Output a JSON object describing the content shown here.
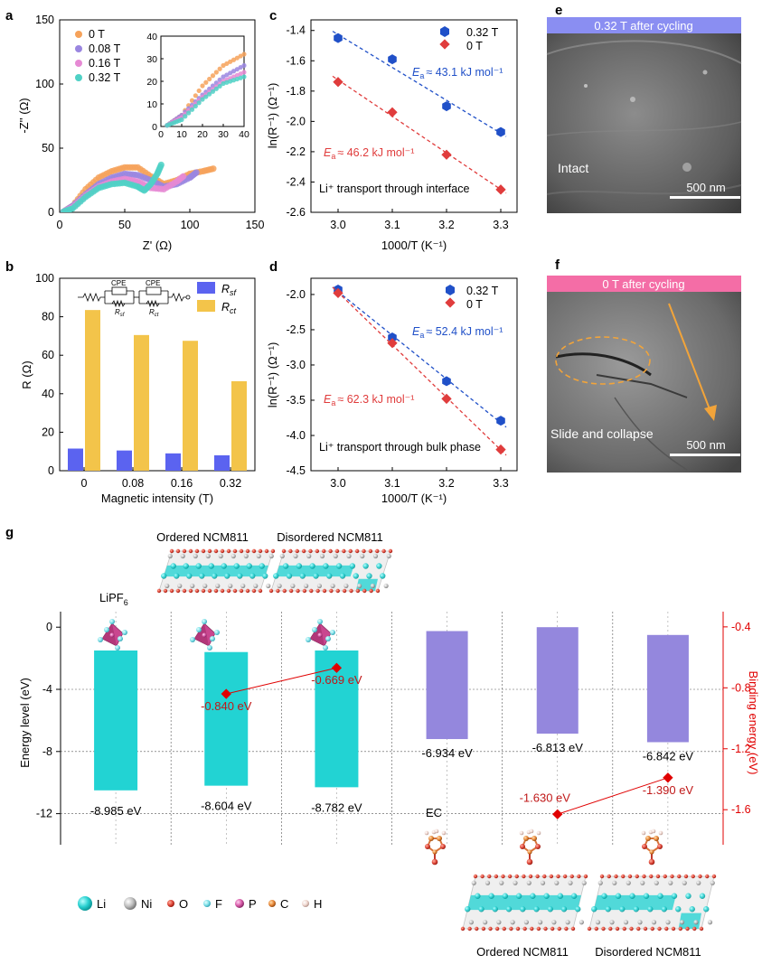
{
  "figure": {
    "panels": {
      "a": "a",
      "b": "b",
      "c": "c",
      "d": "d",
      "e": "e",
      "f": "f",
      "g": "g"
    }
  },
  "colors": {
    "t0": "#f6a25a",
    "t008": "#9a86e0",
    "t016": "#e68ad4",
    "t032": "#4fd1c5",
    "blue": "#2050c8",
    "red": "#e03c3c",
    "bar_rsf": "#5b63f0",
    "bar_rct": "#f3c44a",
    "cyan_bar": "#22d3d3",
    "purple_bar": "#9487dd",
    "binding": "#e00000",
    "sem_e_header": "#8a8ef2",
    "sem_f_header": "#f46da6",
    "arrow": "#f2a43a"
  },
  "panel_a": {
    "xlabel": "Z' (Ω)",
    "ylabel": "-Z'' (Ω)",
    "x_ticks": [
      "0",
      "50",
      "100",
      "150"
    ],
    "y_ticks": [
      "0",
      "50",
      "100",
      "150"
    ],
    "inset_x_ticks": [
      "0",
      "10",
      "20",
      "30",
      "40"
    ],
    "inset_y_ticks": [
      "0",
      "10",
      "20",
      "30",
      "40"
    ],
    "legend": [
      "0 T",
      "0.08 T",
      "0.16 T",
      "0.32 T"
    ]
  },
  "panel_b": {
    "xlabel": "Magnetic intensity (T)",
    "ylabel": "R (Ω)",
    "y_ticks": [
      "0",
      "20",
      "40",
      "60",
      "80",
      "100"
    ],
    "legend": {
      "rsf_main": "R",
      "rsf_sub": "sf",
      "rct_main": "R",
      "rct_sub": "ct"
    },
    "circuit": {
      "cpe1": "CPE",
      "cpe2": "CPE",
      "r1_main": "R",
      "r1_sub": "sf",
      "r2_main": "R",
      "r2_sub": "ct"
    }
  },
  "panel_c": {
    "xlabel": "1000/T (K⁻¹)",
    "ylabel": "ln(R⁻¹) (Ω⁻¹)",
    "x_ticks": [
      "3.0",
      "3.1",
      "3.2",
      "3.3"
    ],
    "y_ticks": [
      "-1.4",
      "-1.6",
      "-1.8",
      "-2.0",
      "-2.2",
      "-2.4",
      "-2.6"
    ],
    "legend": [
      "0.32 T",
      "0 T"
    ],
    "ea_blue": "≈ 43.1 kJ mol⁻¹",
    "ea_red": "≈ 46.2 kJ mol⁻¹",
    "note": "Li⁺ transport through interface"
  },
  "panel_d": {
    "xlabel": "1000/T (K⁻¹)",
    "ylabel": "ln(R⁻¹) (Ω⁻¹)",
    "x_ticks": [
      "3.0",
      "3.1",
      "3.2",
      "3.3"
    ],
    "y_ticks": [
      "-2.0",
      "-2.5",
      "-3.0",
      "-3.5",
      "-4.0",
      "-4.5"
    ],
    "legend": [
      "0.32 T",
      "0 T"
    ],
    "ea_blue": "≈ 52.4 kJ mol⁻¹",
    "ea_red": "≈ 62.3 kJ mol⁻¹",
    "note": "Li⁺ transport through bulk phase"
  },
  "ea_symbol": {
    "main": "E",
    "sub": "a"
  },
  "panel_e": {
    "header": "0.32 T after cycling",
    "note": "Intact",
    "scale": "500 nm"
  },
  "panel_f": {
    "header": "0 T after cycling",
    "note": "Slide and collapse",
    "scale": "500 nm"
  },
  "panel_g": {
    "ylabel_left": "Energy level (eV)",
    "ylabel_right": "Binding energy (eV)",
    "left_ticks": [
      "0",
      "-4",
      "-8",
      "-12"
    ],
    "right_ticks": [
      "-0.4",
      "-0.8",
      "-1.2",
      "-1.6"
    ],
    "labels_top": [
      "Ordered NCM811",
      "Disordered NCM811"
    ],
    "labels_bottom": [
      "Ordered NCM811",
      "Disordered NCM811"
    ],
    "lipf6": {
      "main": "LiPF",
      "sub": "6"
    },
    "ec": "EC",
    "bar_values": [
      "-8.985 eV",
      "-8.604 eV",
      "-8.782 eV",
      "-6.934 eV",
      "-6.813 eV",
      "-6.842 eV"
    ],
    "binding_values": [
      "-0.840 eV",
      "-0.669 eV",
      "-1.630 eV",
      "-1.390 eV"
    ],
    "atom_legend": [
      "Li",
      "Ni",
      "O",
      "F",
      "P",
      "C",
      "H"
    ]
  },
  "chart_data": [
    {
      "panel": "a",
      "type": "scatter",
      "xlabel": "Z' (Ω)",
      "ylabel": "-Z'' (Ω)",
      "xlim": [
        0,
        150
      ],
      "ylim": [
        0,
        150
      ],
      "series": [
        {
          "name": "0 T",
          "x": [
            3,
            10,
            20,
            30,
            40,
            50,
            60,
            70,
            80,
            90,
            100,
            110,
            118
          ],
          "y": [
            0.5,
            5,
            18,
            27,
            32,
            35,
            35,
            28,
            22,
            25,
            30,
            32,
            34
          ]
        },
        {
          "name": "0.08 T",
          "x": [
            3,
            10,
            20,
            30,
            40,
            50,
            60,
            70,
            80,
            90,
            100,
            105
          ],
          "y": [
            0.5,
            5,
            14,
            22,
            27,
            30,
            29,
            25,
            20,
            22,
            27,
            31
          ]
        },
        {
          "name": "0.16 T",
          "x": [
            3,
            10,
            20,
            30,
            40,
            50,
            60,
            70,
            80,
            90,
            95
          ],
          "y": [
            0.5,
            4,
            13,
            20,
            24,
            26,
            24,
            19,
            18,
            24,
            28
          ]
        },
        {
          "name": "0.32 T",
          "x": [
            3,
            10,
            20,
            30,
            40,
            50,
            60,
            65,
            70,
            75,
            78
          ],
          "y": [
            0.5,
            3,
            12,
            19,
            22,
            23,
            20,
            17,
            22,
            30,
            37
          ]
        }
      ],
      "inset": {
        "xlim": [
          0,
          40
        ],
        "ylim": [
          0,
          40
        ]
      }
    },
    {
      "panel": "b",
      "type": "bar",
      "xlabel": "Magnetic intensity (T)",
      "ylabel": "R (Ω)",
      "categories": [
        "0",
        "0.08",
        "0.16",
        "0.32"
      ],
      "ylim": [
        0,
        100
      ],
      "series": [
        {
          "name": "Rsf",
          "values": [
            11.5,
            10.5,
            9,
            8
          ]
        },
        {
          "name": "Rct",
          "values": [
            83.5,
            70.5,
            67.5,
            46.5
          ]
        }
      ]
    },
    {
      "panel": "c",
      "type": "scatter",
      "xlabel": "1000/T (K⁻¹)",
      "ylabel": "ln(R⁻¹) (Ω⁻¹)",
      "xlim": [
        2.95,
        3.33
      ],
      "ylim": [
        -2.6,
        -1.33
      ],
      "series": [
        {
          "name": "0.32 T",
          "x": [
            3.0,
            3.1,
            3.2,
            3.3
          ],
          "y": [
            -1.45,
            -1.59,
            -1.9,
            -2.07
          ]
        },
        {
          "name": "0 T",
          "x": [
            3.0,
            3.1,
            3.2,
            3.3
          ],
          "y": [
            -1.74,
            -1.94,
            -2.22,
            -2.45
          ]
        }
      ]
    },
    {
      "panel": "d",
      "type": "scatter",
      "xlabel": "1000/T (K⁻¹)",
      "ylabel": "ln(R⁻¹) (Ω⁻¹)",
      "xlim": [
        2.95,
        3.33
      ],
      "ylim": [
        -4.5,
        -1.77
      ],
      "series": [
        {
          "name": "0.32 T",
          "x": [
            3.0,
            3.1,
            3.2,
            3.3
          ],
          "y": [
            -1.93,
            -2.61,
            -3.23,
            -3.79
          ]
        },
        {
          "name": "0 T",
          "x": [
            3.0,
            3.1,
            3.2,
            3.3
          ],
          "y": [
            -1.98,
            -2.69,
            -3.48,
            -4.2
          ]
        }
      ]
    },
    {
      "panel": "g",
      "type": "bar",
      "ylabel": "Energy level (eV)",
      "ylim": [
        -14,
        1
      ],
      "bars": [
        {
          "top": -1.5,
          "bottom": -10.5
        },
        {
          "top": -1.6,
          "bottom": -10.2
        },
        {
          "top": -1.5,
          "bottom": -10.3
        },
        {
          "top": -0.25,
          "bottom": -7.2
        },
        {
          "top": 0,
          "bottom": -6.85
        },
        {
          "top": -0.5,
          "bottom": -7.4
        }
      ],
      "binding": {
        "ylabel": "Binding energy (eV)",
        "ylim": [
          -1.83,
          -0.3
        ],
        "points": [
          {
            "bar": 1,
            "value": -0.84
          },
          {
            "bar": 2,
            "value": -0.669
          },
          {
            "bar": 4,
            "value": -1.63
          },
          {
            "bar": 5,
            "value": -1.39
          }
        ]
      }
    }
  ]
}
